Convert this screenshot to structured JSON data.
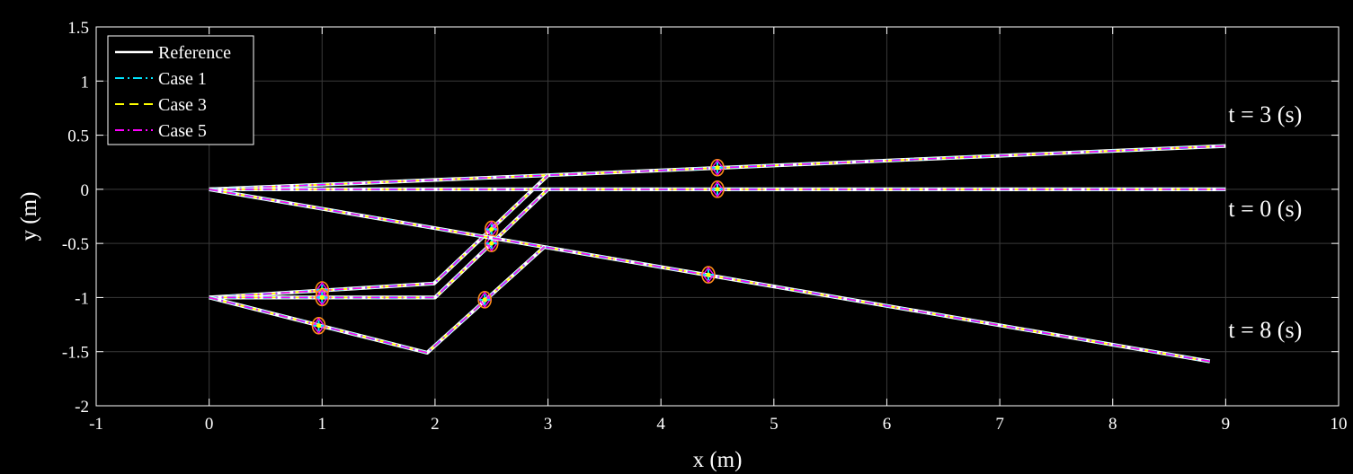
{
  "chart_data": {
    "type": "line",
    "xlabel": "x (m)",
    "ylabel": "y (m)",
    "xlim": [
      -1,
      10
    ],
    "ylim": [
      -2,
      1.5
    ],
    "xticks": [
      -1,
      0,
      1,
      2,
      3,
      4,
      5,
      6,
      7,
      8,
      9,
      10
    ],
    "yticks": [
      -2,
      -1.5,
      -1,
      -0.5,
      0,
      0.5,
      1,
      1.5
    ],
    "xtick_labels": [
      "-1",
      "0",
      "1",
      "2",
      "3",
      "4",
      "5",
      "6",
      "7",
      "8",
      "9",
      "10"
    ],
    "ytick_labels": [
      "-2",
      "-1.5",
      "-1",
      "-0.5",
      "0",
      "0.5",
      "1",
      "1.5"
    ],
    "grid": true,
    "legend_position": "top-left",
    "colors": {
      "background": "#000000",
      "axes": "#ffffff",
      "grid": "#3a3a3a"
    },
    "series": [
      {
        "name": "Reference",
        "color": "#ffffff",
        "dash": "solid"
      },
      {
        "name": "Case 1",
        "color": "#00e5ff",
        "dash": "dashdot"
      },
      {
        "name": "Case 3",
        "color": "#ffff00",
        "dash": "dashed"
      },
      {
        "name": "Case 5",
        "color": "#ff00ff",
        "dash": "dashdot"
      }
    ],
    "snapshots": [
      {
        "label": "t = 3 (s)",
        "label_anchor": [
          9.35,
          0.62
        ],
        "paths": [
          [
            [
              0,
              0
            ],
            [
              3,
              0.13
            ],
            [
              9,
              0.4
            ]
          ],
          [
            [
              0,
              -1
            ],
            [
              1.99,
              -0.87
            ],
            [
              3,
              0.13
            ]
          ]
        ],
        "markers": [
          [
            4.5,
            0.2
          ],
          [
            2.5,
            -0.37
          ],
          [
            1.0,
            -0.93
          ]
        ]
      },
      {
        "label": "t = 0 (s)",
        "label_anchor": [
          9.35,
          -0.25
        ],
        "paths": [
          [
            [
              0,
              0
            ],
            [
              9,
              0
            ]
          ],
          [
            [
              0,
              -1
            ],
            [
              2,
              -1
            ],
            [
              3,
              0
            ]
          ]
        ],
        "markers": [
          [
            4.5,
            0
          ],
          [
            2.5,
            -0.5
          ],
          [
            1.0,
            -1.0
          ]
        ]
      },
      {
        "label": "t = 8 (s)",
        "label_anchor": [
          9.35,
          -1.37
        ],
        "paths": [
          [
            [
              0,
              0
            ],
            [
              8.86,
              -1.59
            ]
          ],
          [
            [
              0,
              -1
            ],
            [
              1.93,
              -1.51
            ],
            [
              2.97,
              -0.53
            ]
          ]
        ],
        "markers": [
          [
            4.42,
            -0.79
          ],
          [
            2.44,
            -1.02
          ],
          [
            0.97,
            -1.26
          ]
        ]
      }
    ]
  }
}
